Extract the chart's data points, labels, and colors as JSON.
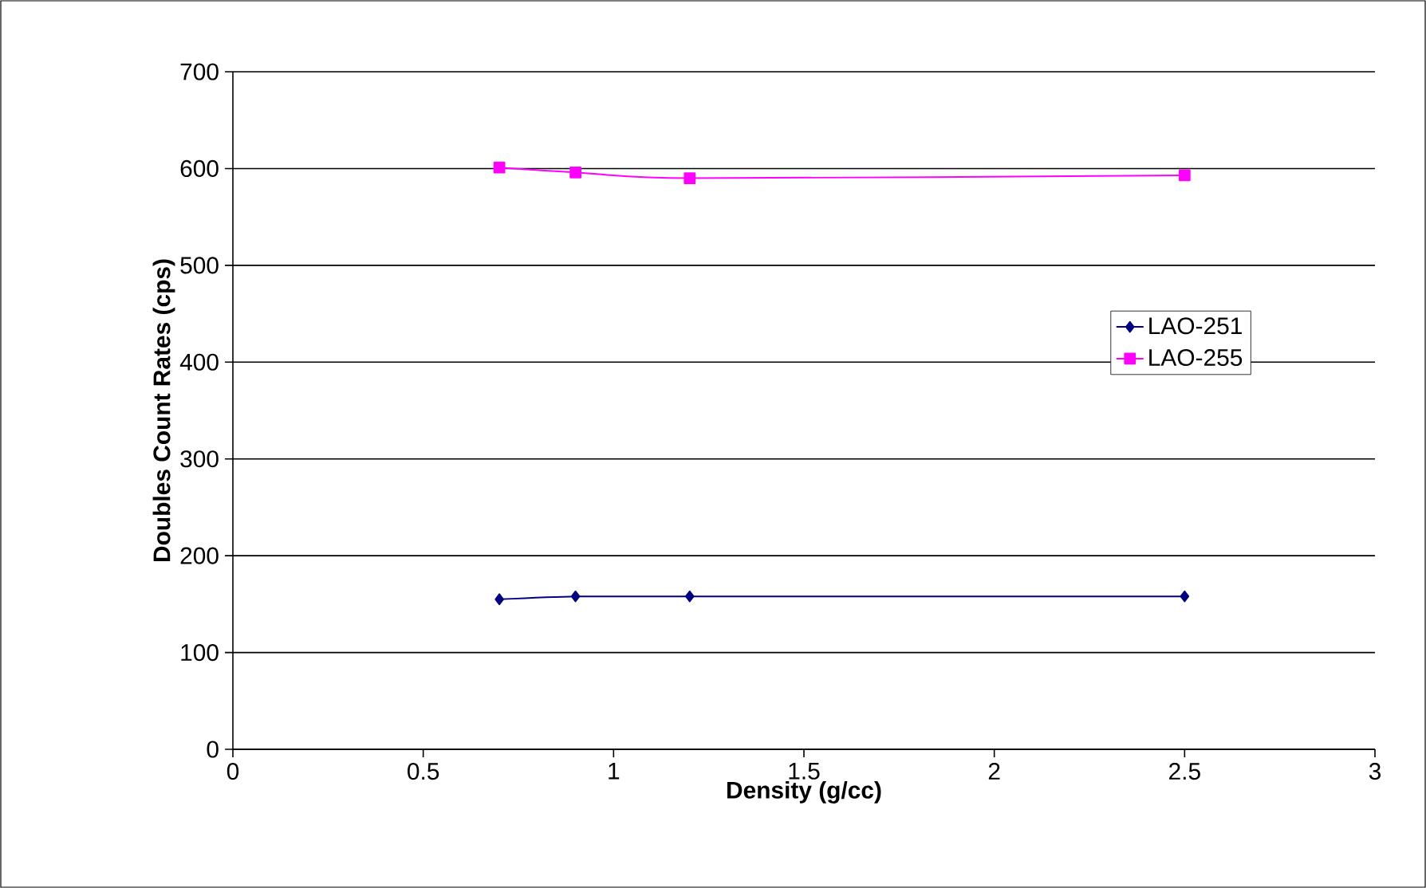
{
  "chart_data": {
    "type": "line",
    "xlabel": "Density (g/cc)",
    "ylabel": "Doubles Count Rates (cps)",
    "xlim": [
      0,
      3
    ],
    "xticks": [
      0,
      0.5,
      1,
      1.5,
      2,
      2.5,
      3
    ],
    "ylim": [
      0,
      700
    ],
    "yticks": [
      0,
      100,
      200,
      300,
      400,
      500,
      600,
      700
    ],
    "grid": "y",
    "legend": "right",
    "series": [
      {
        "name": "LAO-251",
        "color": "#000080",
        "marker": "diamond",
        "x": [
          0.7,
          0.9,
          1.2,
          2.5
        ],
        "values": [
          155,
          158,
          158,
          158
        ]
      },
      {
        "name": "LAO-255",
        "color": "#ff00ff",
        "marker": "square",
        "x": [
          0.7,
          0.9,
          1.2,
          2.5
        ],
        "values": [
          601,
          596,
          590,
          593
        ]
      }
    ]
  }
}
